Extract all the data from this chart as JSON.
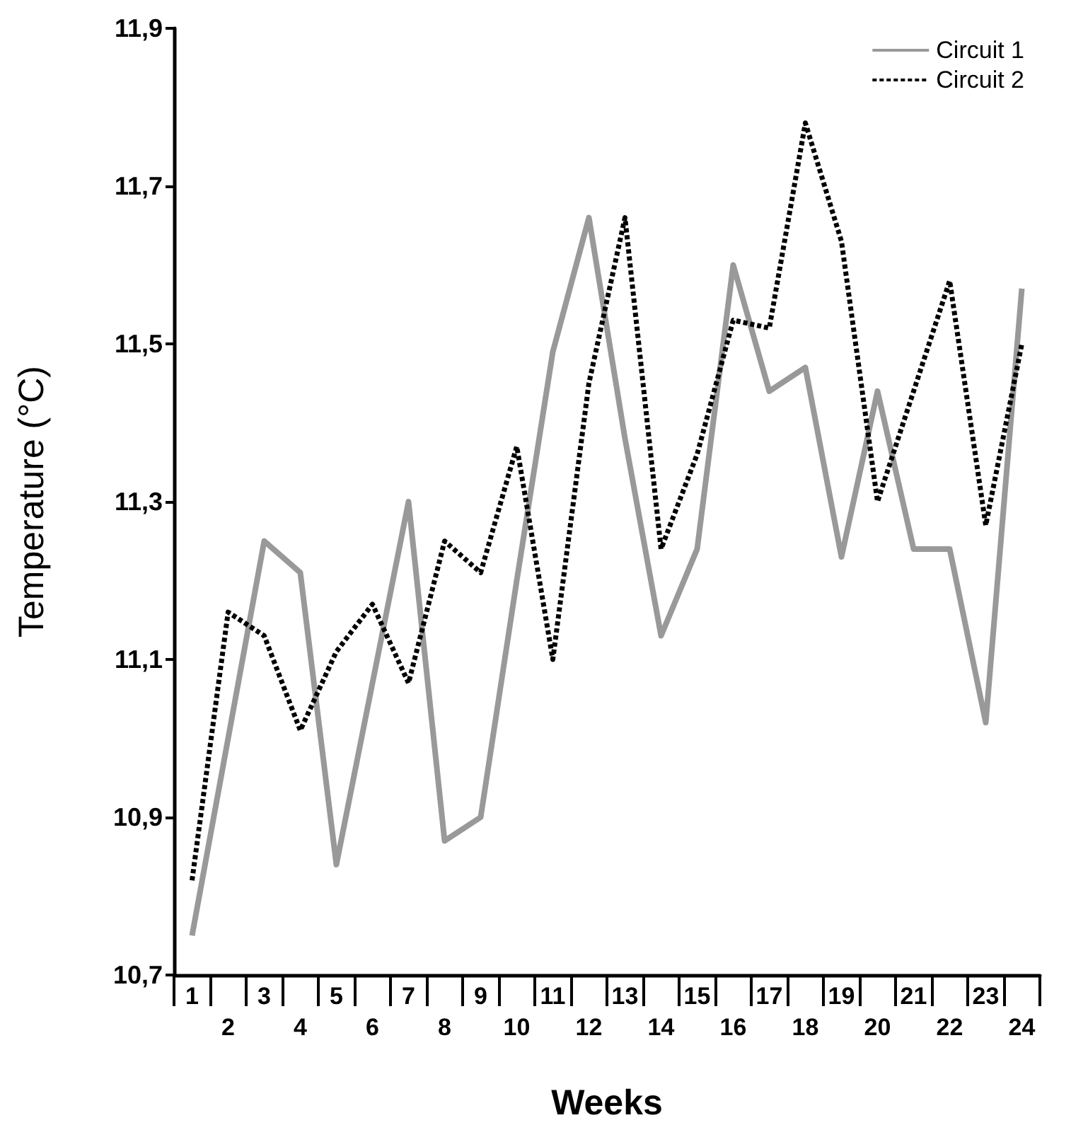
{
  "chart_data": {
    "type": "line",
    "xlabel": "Weeks",
    "ylabel": "Temperature (°C)",
    "categories": [
      "1",
      "2",
      "3",
      "4",
      "5",
      "6",
      "7",
      "8",
      "9",
      "10",
      "11",
      "12",
      "13",
      "14",
      "15",
      "16",
      "17",
      "18",
      "19",
      "20",
      "21",
      "22",
      "23",
      "24"
    ],
    "series": [
      {
        "name": "Circuit 1",
        "color": "#999999",
        "line_style": "solid",
        "values": [
          10.75,
          11.0,
          11.25,
          11.21,
          10.84,
          11.07,
          11.3,
          10.87,
          10.9,
          11.2,
          11.49,
          11.66,
          11.38,
          11.13,
          11.24,
          11.6,
          11.44,
          11.47,
          11.23,
          11.44,
          11.24,
          11.24,
          11.02,
          11.57
        ]
      },
      {
        "name": "Circuit 2",
        "color": "#000000",
        "line_style": "dotted",
        "values": [
          10.82,
          11.16,
          11.13,
          11.01,
          11.11,
          11.17,
          11.07,
          11.25,
          11.21,
          11.37,
          11.1,
          11.45,
          11.66,
          11.24,
          11.36,
          11.53,
          11.52,
          11.78,
          11.63,
          11.3,
          11.44,
          11.58,
          11.27,
          11.5
        ]
      }
    ],
    "ylim": [
      10.7,
      11.9
    ],
    "yticks": [
      {
        "value": 10.7,
        "label": "10,7"
      },
      {
        "value": 10.9,
        "label": "10,9"
      },
      {
        "value": 11.1,
        "label": "11,1"
      },
      {
        "value": 11.3,
        "label": "11,3"
      },
      {
        "value": 11.5,
        "label": "11,5"
      },
      {
        "value": 11.7,
        "label": "11,7"
      },
      {
        "value": 11.9,
        "label": "11,9"
      }
    ],
    "grid": false,
    "legend": "top right",
    "marker": "none"
  }
}
